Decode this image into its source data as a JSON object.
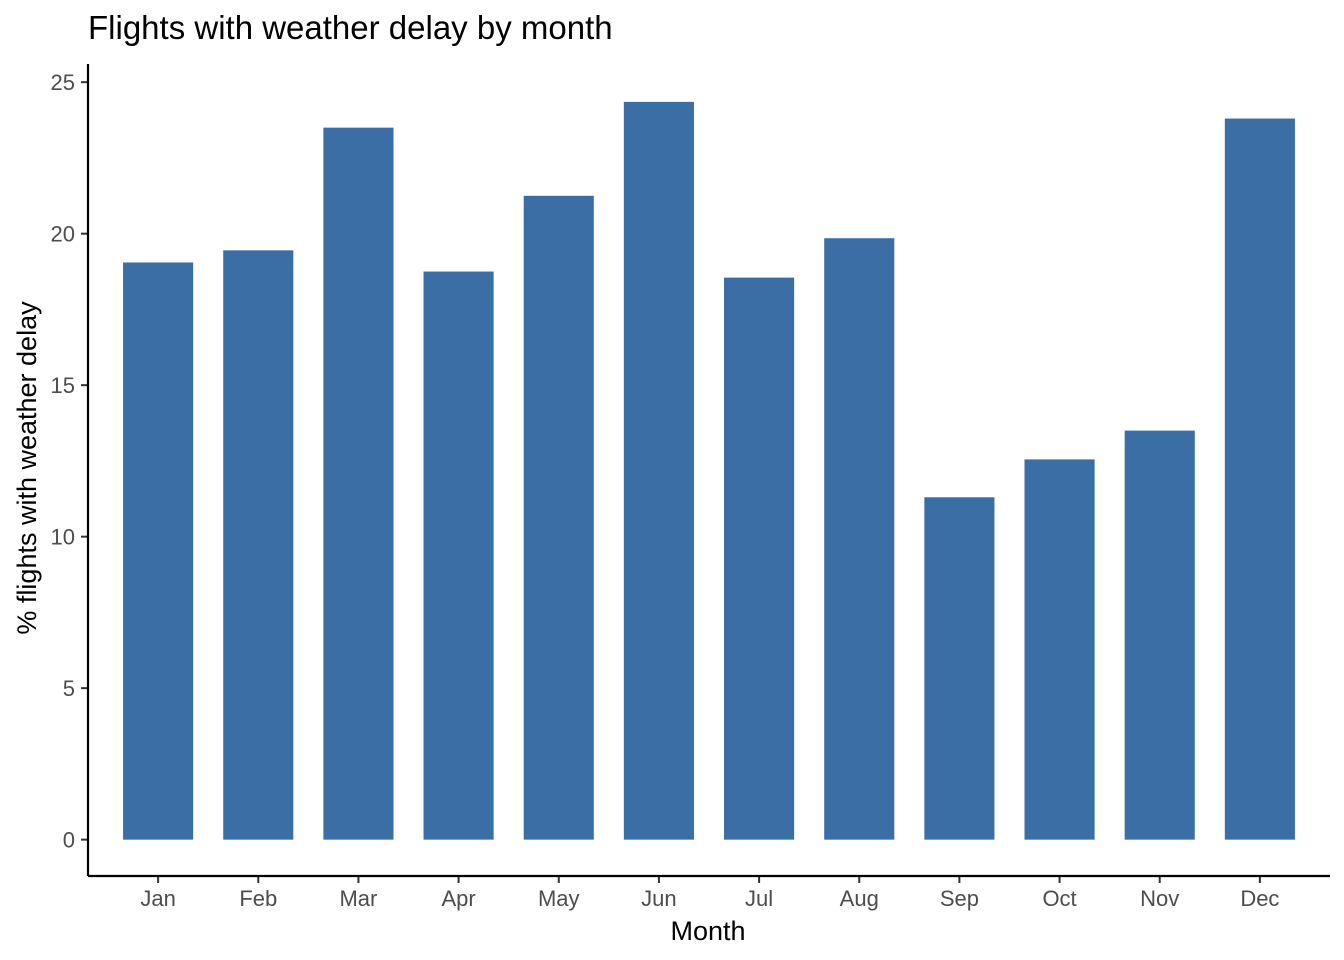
{
  "chart_data": {
    "type": "bar",
    "title": "Flights with weather delay by month",
    "xlabel": "Month",
    "ylabel": "% flights with weather delay",
    "categories": [
      "Jan",
      "Feb",
      "Mar",
      "Apr",
      "May",
      "Jun",
      "Jul",
      "Aug",
      "Sep",
      "Oct",
      "Nov",
      "Dec"
    ],
    "values": [
      19.05,
      19.45,
      23.5,
      18.75,
      21.25,
      24.35,
      18.55,
      19.85,
      11.3,
      12.55,
      13.5,
      23.8
    ],
    "yticks": [
      0,
      5,
      10,
      15,
      20,
      25
    ],
    "ylim": [
      -1.2,
      25.6
    ],
    "grid": false,
    "legend": "none",
    "bar_color": "#3a6ea5"
  }
}
